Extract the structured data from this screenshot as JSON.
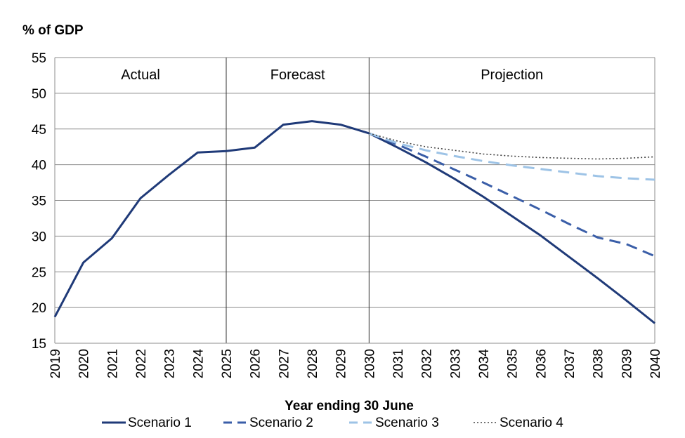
{
  "chart_data": {
    "type": "line",
    "ylabel": "% of GDP",
    "xlabel": "Year ending 30 June",
    "ylim": [
      15,
      55
    ],
    "yticks": [
      15,
      20,
      25,
      30,
      35,
      40,
      45,
      50,
      55
    ],
    "x": [
      "2019",
      "2020",
      "2021",
      "2022",
      "2023",
      "2024",
      "2025",
      "2026",
      "2027",
      "2028",
      "2029",
      "2030",
      "2031",
      "2032",
      "2033",
      "2034",
      "2035",
      "2036",
      "2037",
      "2038",
      "2039",
      "2040"
    ],
    "grid": true,
    "regions": [
      {
        "label": "Actual",
        "from": "2019",
        "to": "2025"
      },
      {
        "label": "Forecast",
        "from": "2025",
        "to": "2030"
      },
      {
        "label": "Projection",
        "from": "2030",
        "to": "2040"
      }
    ],
    "series": [
      {
        "name": "Scenario 1",
        "color": "#1f3a78",
        "dash": "solid",
        "values": [
          18.7,
          26.3,
          29.7,
          35.3,
          38.6,
          41.7,
          41.9,
          42.4,
          45.6,
          46.1,
          45.6,
          44.4,
          42.4,
          40.3,
          38.0,
          35.5,
          32.8,
          30.1,
          27.1,
          24.1,
          21.0,
          17.8
        ]
      },
      {
        "name": "Scenario 2",
        "color": "#3a5ea8",
        "dash": "dashed",
        "values": [
          null,
          null,
          null,
          null,
          null,
          null,
          null,
          null,
          null,
          null,
          null,
          44.4,
          42.8,
          41.1,
          39.3,
          37.5,
          35.6,
          33.7,
          31.7,
          29.8,
          28.9,
          27.2
        ]
      },
      {
        "name": "Scenario 3",
        "color": "#9dc3e6",
        "dash": "dashed",
        "values": [
          null,
          null,
          null,
          null,
          null,
          null,
          null,
          null,
          null,
          null,
          null,
          44.4,
          43.0,
          42.0,
          41.2,
          40.5,
          39.9,
          39.4,
          38.9,
          38.4,
          38.1,
          37.9
        ]
      },
      {
        "name": "Scenario 4",
        "color": "#444444",
        "dash": "dotted",
        "values": [
          null,
          null,
          null,
          null,
          null,
          null,
          null,
          null,
          null,
          null,
          null,
          44.4,
          43.3,
          42.5,
          42.0,
          41.5,
          41.2,
          41.0,
          40.9,
          40.8,
          40.9,
          41.1
        ]
      }
    ],
    "legend_position": "bottom"
  }
}
